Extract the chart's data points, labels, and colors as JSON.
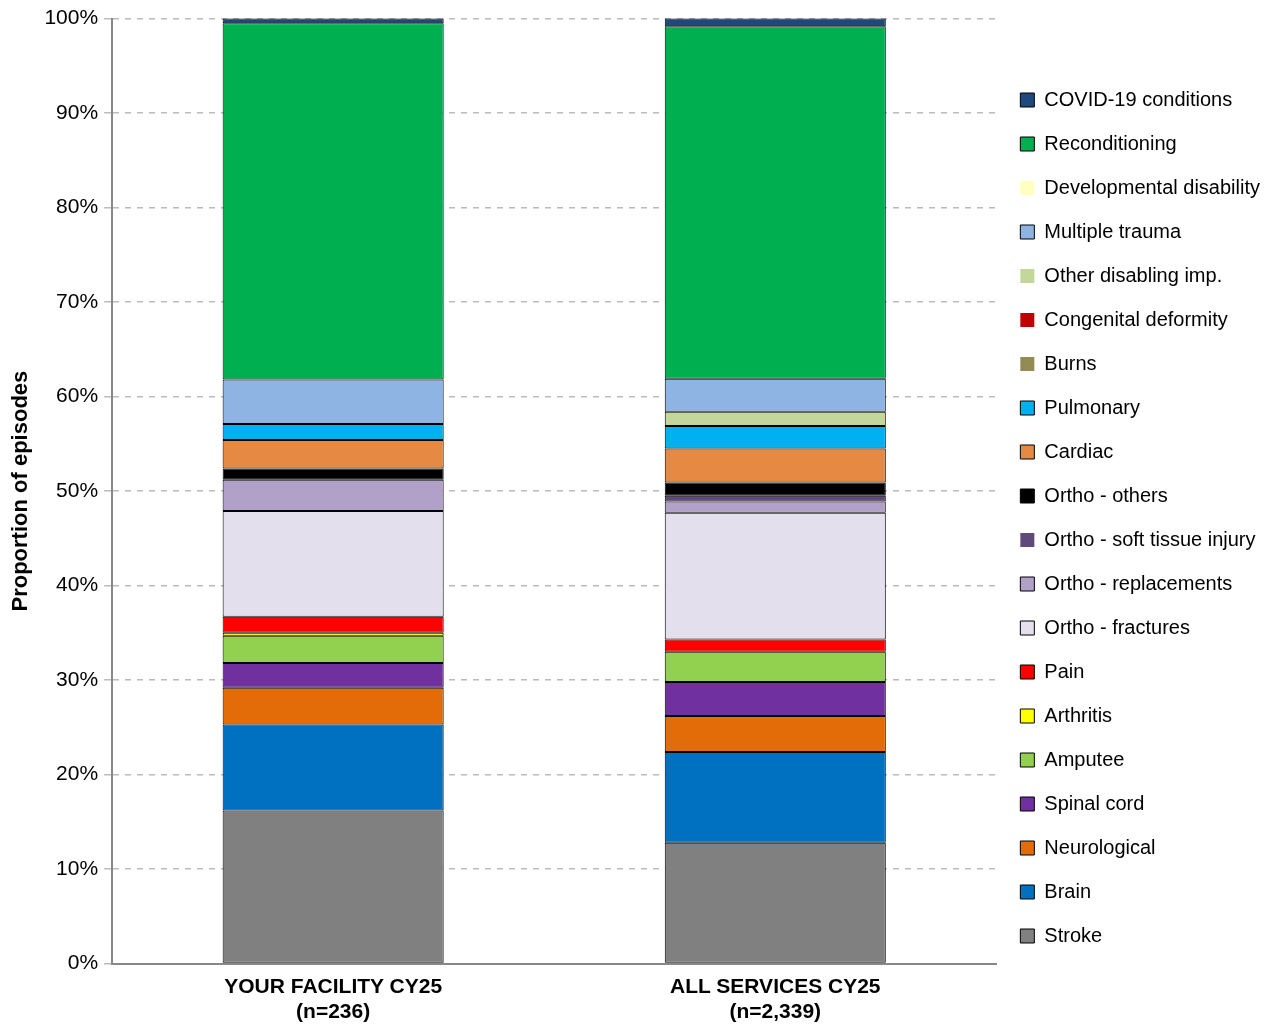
{
  "chart_data": {
    "type": "bar",
    "stacked": true,
    "ylabel": "Proportion of episodes",
    "categories": [
      "YOUR FACILITY CY25\n(n=236)",
      "ALL SERVICES CY25\n(n=2,339)"
    ],
    "series": [
      {
        "name": "Stroke",
        "color": "#808080",
        "values": [
          16.2,
          12.8
        ]
      },
      {
        "name": "Brain",
        "color": "#0070c0",
        "values": [
          9.1,
          9.6
        ]
      },
      {
        "name": "Neurological",
        "color": "#e36c09",
        "values": [
          3.9,
          3.8
        ]
      },
      {
        "name": "Spinal cord",
        "color": "#7030a0",
        "values": [
          2.6,
          3.6
        ]
      },
      {
        "name": "Amputee",
        "color": "#92d050",
        "values": [
          2.9,
          3.2
        ]
      },
      {
        "name": "Arthritis",
        "color": "#ffff00",
        "values": [
          0.3,
          0
        ]
      },
      {
        "name": "Pain",
        "color": "#ff0000",
        "values": [
          1.7,
          1.3
        ]
      },
      {
        "name": "Ortho - fractures",
        "color": "#e4dfec",
        "values": [
          11.2,
          13.4
        ]
      },
      {
        "name": "Ortho - replacements",
        "color": "#b1a0c7",
        "values": [
          3.3,
          1.2
        ]
      },
      {
        "name": "Ortho - soft tissue injury",
        "color": "#604a7b",
        "values": [
          0,
          0.6
        ]
      },
      {
        "name": "Ortho - others",
        "color": "#000000",
        "values": [
          1.2,
          1.4
        ]
      },
      {
        "name": "Cardiac",
        "color": "#e68a43",
        "values": [
          3.0,
          3.6
        ]
      },
      {
        "name": "Pulmonary",
        "color": "#00b0f0",
        "values": [
          1.7,
          2.4
        ]
      },
      {
        "name": "Burns",
        "color": "#948a54",
        "values": [
          0,
          0
        ]
      },
      {
        "name": "Congenital deformity",
        "color": "#c00000",
        "values": [
          0,
          0
        ]
      },
      {
        "name": "Other disabling imp.",
        "color": "#c4d79b",
        "values": [
          0,
          1.5
        ]
      },
      {
        "name": "Multiple trauma",
        "color": "#8db4e2",
        "values": [
          4.7,
          3.5
        ]
      },
      {
        "name": "Developmental disability",
        "color": "#ffffc0",
        "values": [
          0,
          0
        ]
      },
      {
        "name": "Reconditioning",
        "color": "#00b050",
        "values": [
          37.7,
          37.3
        ]
      },
      {
        "name": "COVID-19 conditions",
        "color": "#1f497d",
        "values": [
          0.5,
          0.8
        ]
      }
    ],
    "ylim": [
      0,
      100
    ],
    "yticks": [
      {
        "value": 0,
        "label": "0%"
      },
      {
        "value": 10,
        "label": "10%"
      },
      {
        "value": 20,
        "label": "20%"
      },
      {
        "value": 30,
        "label": "30%"
      },
      {
        "value": 40,
        "label": "40%"
      },
      {
        "value": 50,
        "label": "50%"
      },
      {
        "value": 60,
        "label": "60%"
      },
      {
        "value": 70,
        "label": "70%"
      },
      {
        "value": 80,
        "label": "80%"
      },
      {
        "value": 90,
        "label": "90%"
      },
      {
        "value": 100,
        "label": "100%"
      }
    ],
    "grid": "y",
    "legend": "right"
  }
}
